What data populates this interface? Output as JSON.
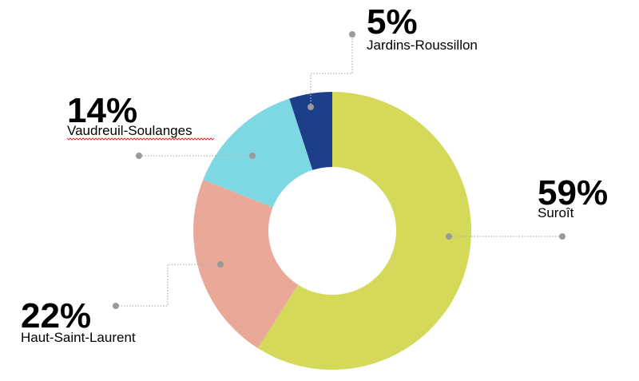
{
  "chart_data": {
    "type": "pie",
    "donut": true,
    "slices": [
      {
        "label": "Suroît",
        "value": 59,
        "value_label": "59%",
        "color": "#d4d95a"
      },
      {
        "label": "Haut-Saint-Laurent",
        "value": 22,
        "value_label": "22%",
        "color": "#eaa998"
      },
      {
        "label": "Vaudreuil-Soulanges",
        "value": 14,
        "value_label": "14%",
        "color": "#7ed8e4"
      },
      {
        "label": "Jardins-Roussillon",
        "value": 5,
        "value_label": "5%",
        "color": "#1d3f8a"
      }
    ],
    "start": "12 o'clock",
    "direction": "clockwise",
    "legend": "none"
  }
}
